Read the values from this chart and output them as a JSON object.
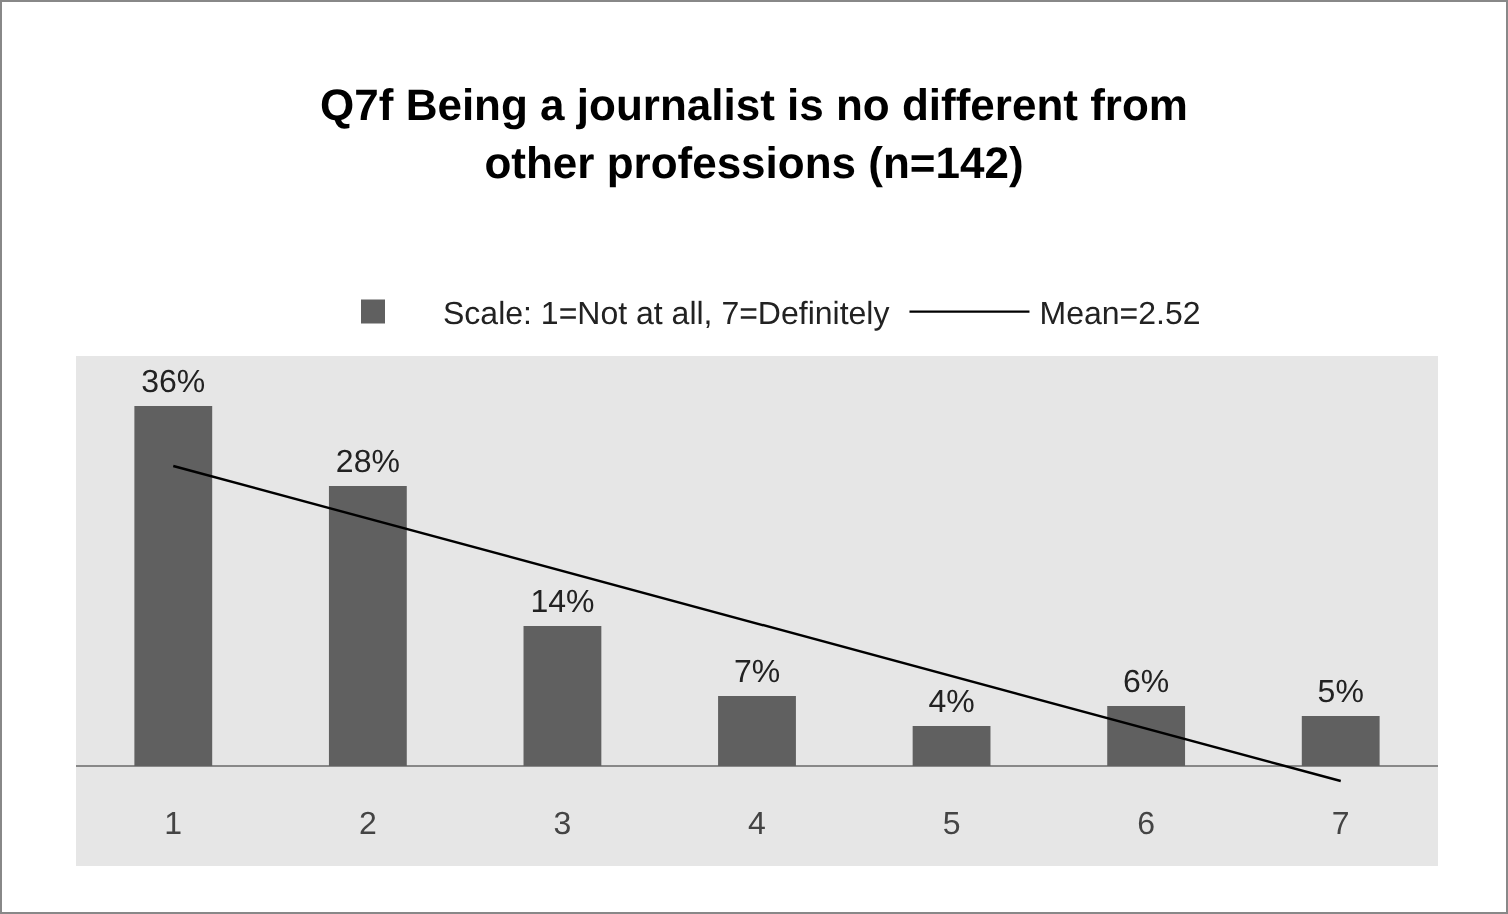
{
  "chart_data": {
    "type": "bar",
    "title": "Q7f Being a journalist is no different from other professions (n=142)",
    "categories": [
      "1",
      "2",
      "3",
      "4",
      "5",
      "6",
      "7"
    ],
    "series": [
      {
        "name": "Scale: 1=Not at all, 7=Definitely",
        "color": "#606060",
        "values": [
          36,
          28,
          14,
          7,
          4,
          6,
          5
        ],
        "value_labels": [
          "36%",
          "28%",
          "14%",
          "7%",
          "4%",
          "6%",
          "5%"
        ]
      },
      {
        "type": "line",
        "name": "Mean=2.52",
        "color": "#000000",
        "x": [
          "1",
          "7"
        ],
        "values": [
          30,
          -1.5
        ]
      }
    ],
    "ylim": [
      -10,
      41
    ],
    "tick_labels": "x",
    "grid": false,
    "legend": "top"
  }
}
